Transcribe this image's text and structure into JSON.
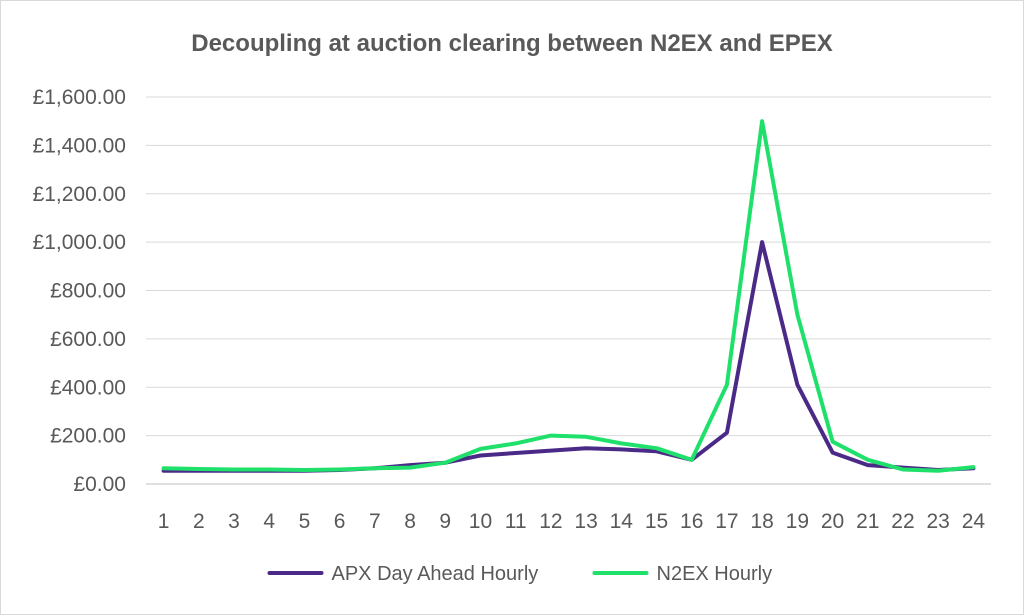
{
  "chart_data": {
    "type": "line",
    "title": "Decoupling at auction clearing between N2EX and EPEX",
    "xlabel": "",
    "ylabel": "",
    "categories": [
      "1",
      "2",
      "3",
      "4",
      "5",
      "6",
      "7",
      "8",
      "9",
      "10",
      "11",
      "12",
      "13",
      "14",
      "15",
      "16",
      "17",
      "18",
      "19",
      "20",
      "21",
      "22",
      "23",
      "24"
    ],
    "yticks": [
      "£0.00",
      "£200.00",
      "£400.00",
      "£600.00",
      "£800.00",
      "£1,000.00",
      "£1,200.00",
      "£1,400.00",
      "£1,600.00"
    ],
    "ylim": [
      0,
      1600
    ],
    "grid": true,
    "legend_position": "bottom",
    "series": [
      {
        "name": "APX Day Ahead Hourly",
        "color": "#4b2a87",
        "values": [
          55,
          55,
          55,
          55,
          55,
          58,
          65,
          78,
          88,
          118,
          128,
          138,
          148,
          143,
          135,
          100,
          212,
          1000,
          410,
          130,
          78,
          68,
          58,
          65
        ]
      },
      {
        "name": "N2EX Hourly",
        "color": "#1fe06a",
        "values": [
          65,
          62,
          60,
          60,
          58,
          60,
          65,
          68,
          88,
          145,
          168,
          200,
          195,
          168,
          148,
          100,
          410,
          1500,
          700,
          175,
          100,
          60,
          55,
          70
        ]
      }
    ]
  }
}
